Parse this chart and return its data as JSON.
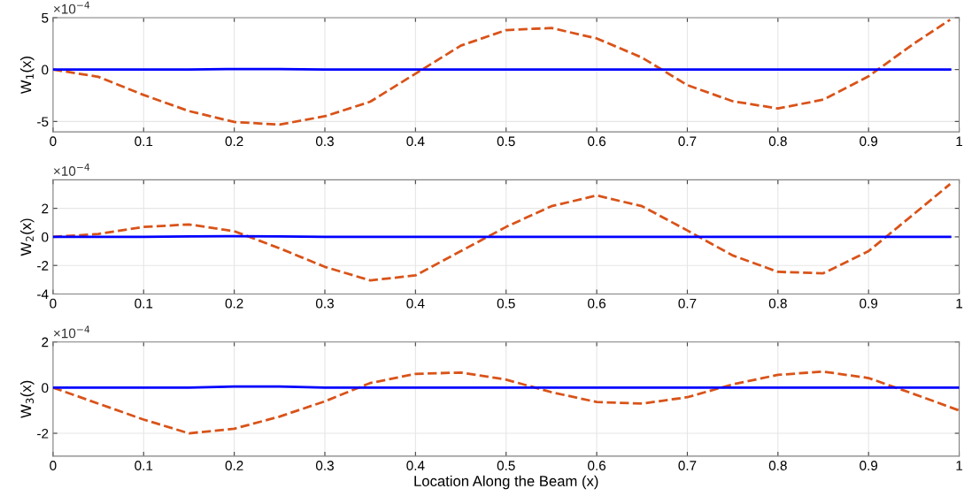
{
  "chart_data": [
    {
      "type": "line",
      "ylabel": "W$_{1}$(x)",
      "annotations": [
        "×10$^{−4}$"
      ],
      "xlim": [
        0,
        1
      ],
      "xticks": [
        0,
        0.1,
        0.2,
        0.3,
        0.4,
        0.5,
        0.6,
        0.7,
        0.8,
        0.9,
        1
      ],
      "ylim": [
        -6,
        5
      ],
      "yticks": [
        -5,
        0,
        5
      ],
      "grid": true,
      "x": [
        0,
        0.05,
        0.1,
        0.15,
        0.2,
        0.25,
        0.3,
        0.35,
        0.4,
        0.45,
        0.5,
        0.55,
        0.6,
        0.65,
        0.7,
        0.75,
        0.8,
        0.85,
        0.9,
        0.95,
        0.99
      ],
      "series": [
        {
          "color": "#0000ff",
          "line_style": "solid",
          "values": [
            0,
            0,
            0,
            0,
            0.05,
            0.05,
            0,
            0,
            0,
            0,
            0,
            0,
            0,
            0,
            0,
            0,
            0,
            0,
            0,
            0,
            0
          ]
        },
        {
          "color": "#d95319",
          "line_style": "dashed",
          "values": [
            0,
            -0.7,
            -2.45,
            -4.0,
            -5.05,
            -5.3,
            -4.5,
            -3.1,
            -0.4,
            2.3,
            3.8,
            4.0,
            3.0,
            1.15,
            -1.5,
            -3.05,
            -3.75,
            -2.9,
            -0.65,
            2.5,
            4.8
          ]
        }
      ]
    },
    {
      "type": "line",
      "ylabel": "W$_{2}$(x)",
      "annotations": [
        "×10$^{−4}$"
      ],
      "xlim": [
        0,
        1
      ],
      "xticks": [
        0,
        0.1,
        0.2,
        0.3,
        0.4,
        0.5,
        0.6,
        0.7,
        0.8,
        0.9,
        1
      ],
      "ylim": [
        -4,
        4
      ],
      "yticks": [
        -4,
        -2,
        0,
        2
      ],
      "grid": true,
      "x": [
        0,
        0.05,
        0.1,
        0.15,
        0.2,
        0.25,
        0.3,
        0.35,
        0.4,
        0.45,
        0.5,
        0.55,
        0.6,
        0.65,
        0.7,
        0.75,
        0.8,
        0.85,
        0.9,
        0.95,
        0.99
      ],
      "series": [
        {
          "color": "#0000ff",
          "line_style": "solid",
          "values": [
            0,
            0,
            0,
            0.03,
            0.05,
            0.03,
            0,
            0,
            0,
            0,
            0,
            0,
            0,
            0,
            0,
            0,
            0,
            0,
            0,
            0,
            0
          ]
        },
        {
          "color": "#d95319",
          "line_style": "dashed",
          "values": [
            0,
            0.2,
            0.7,
            0.87,
            0.4,
            -0.8,
            -2.1,
            -3.05,
            -2.7,
            -1.0,
            0.7,
            2.15,
            2.9,
            2.15,
            0.45,
            -1.3,
            -2.45,
            -2.55,
            -1.0,
            1.6,
            3.7
          ]
        }
      ]
    },
    {
      "type": "line",
      "ylabel": "W$_{3}$(x)",
      "xlabel": "Location Along the Beam (x)",
      "annotations": [
        "×10$^{−4}$"
      ],
      "xlim": [
        0,
        1
      ],
      "xticks": [
        0,
        0.1,
        0.2,
        0.3,
        0.4,
        0.5,
        0.6,
        0.7,
        0.8,
        0.9,
        1
      ],
      "ylim": [
        -3,
        2
      ],
      "yticks": [
        -2,
        0,
        2
      ],
      "grid": true,
      "x": [
        0,
        0.05,
        0.1,
        0.15,
        0.2,
        0.25,
        0.3,
        0.35,
        0.4,
        0.45,
        0.5,
        0.55,
        0.6,
        0.65,
        0.7,
        0.75,
        0.8,
        0.85,
        0.9,
        0.95,
        1
      ],
      "series": [
        {
          "color": "#0000ff",
          "line_style": "solid",
          "values": [
            0,
            0,
            0,
            0,
            0.05,
            0.05,
            0,
            0,
            0,
            0,
            0,
            0,
            0,
            0,
            0,
            0,
            0,
            0,
            0,
            0,
            0
          ]
        },
        {
          "color": "#d95319",
          "line_style": "dashed",
          "values": [
            0,
            -0.7,
            -1.4,
            -2.0,
            -1.8,
            -1.27,
            -0.6,
            0.2,
            0.6,
            0.66,
            0.35,
            -0.2,
            -0.63,
            -0.7,
            -0.42,
            0.14,
            0.56,
            0.7,
            0.42,
            -0.28,
            -1.0
          ]
        }
      ]
    }
  ]
}
